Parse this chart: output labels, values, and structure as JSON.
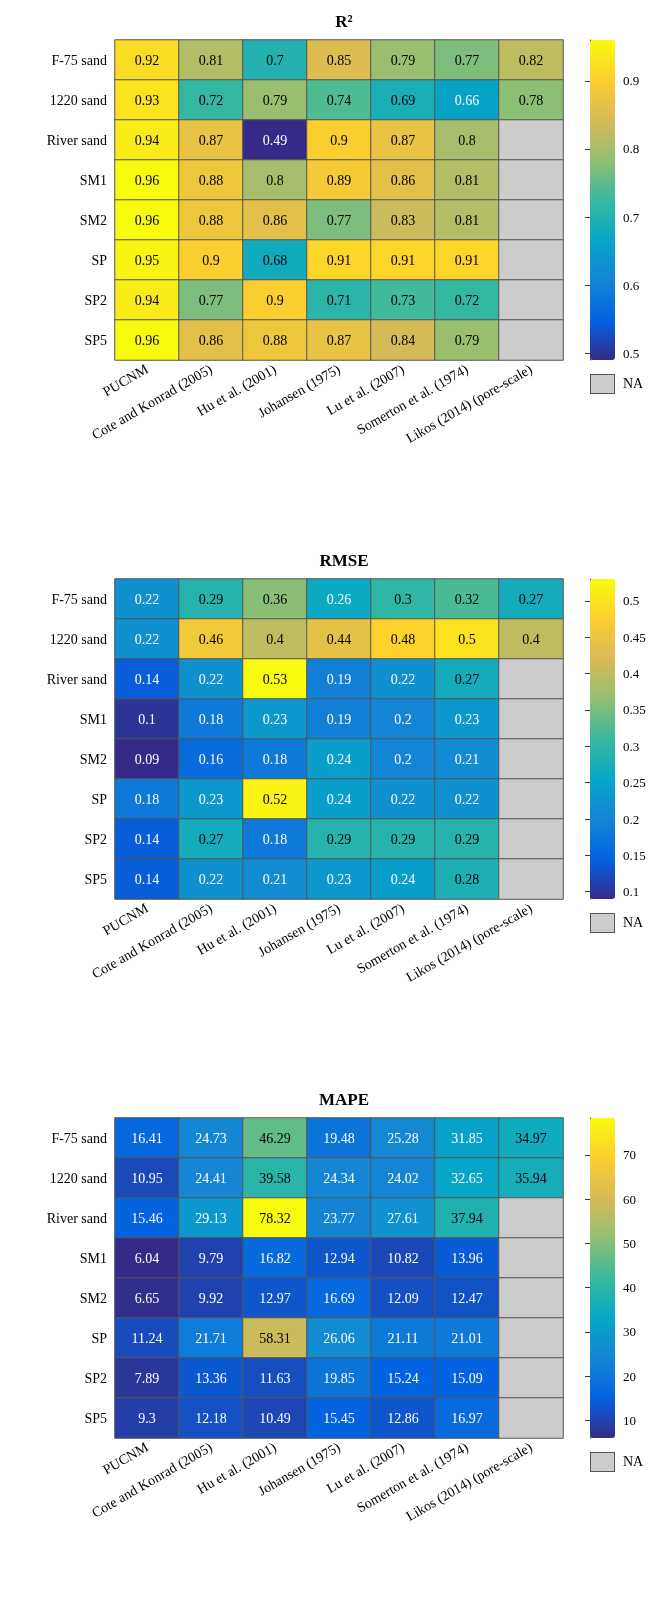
{
  "chart_data": [
    {
      "type": "heatmap",
      "title": "R²",
      "categories": [
        "PUCNM",
        "Cote and Konrad (2005)",
        "Hu et al. (2001)",
        "Johansen (1975)",
        "Lu et al. (2007)",
        "Somerton et al. (1974)",
        "Likos (2014) (pore-scale)"
      ],
      "y_categories": [
        "F-75 sand",
        "1220 sand",
        "River sand",
        "SM1",
        "SM2",
        "SP",
        "SP2",
        "SP5"
      ],
      "cells": [
        [
          0.92,
          0.81,
          0.7,
          0.85,
          0.79,
          0.77,
          0.82
        ],
        [
          0.93,
          0.72,
          0.79,
          0.74,
          0.69,
          0.66,
          0.78
        ],
        [
          0.94,
          0.87,
          0.49,
          0.9,
          0.87,
          0.8,
          null
        ],
        [
          0.96,
          0.88,
          0.8,
          0.89,
          0.86,
          0.81,
          null
        ],
        [
          0.96,
          0.88,
          0.86,
          0.77,
          0.83,
          0.81,
          null
        ],
        [
          0.95,
          0.9,
          0.68,
          0.91,
          0.91,
          0.91,
          null
        ],
        [
          0.94,
          0.77,
          0.9,
          0.71,
          0.73,
          0.72,
          null
        ],
        [
          0.96,
          0.86,
          0.88,
          0.87,
          0.84,
          0.79,
          null
        ]
      ],
      "clim": [
        0.49,
        0.96
      ],
      "cticks": [
        0.5,
        0.6,
        0.7,
        0.8,
        0.9
      ],
      "data_labels": true,
      "annotations": [
        "NA"
      ]
    },
    {
      "type": "heatmap",
      "title": "RMSE",
      "categories": [
        "PUCNM",
        "Cote and Konrad (2005)",
        "Hu et al. (2001)",
        "Johansen (1975)",
        "Lu et al. (2007)",
        "Somerton et al. (1974)",
        "Likos (2014) (pore-scale)"
      ],
      "y_categories": [
        "F-75 sand",
        "1220 sand",
        "River sand",
        "SM1",
        "SM2",
        "SP",
        "SP2",
        "SP5"
      ],
      "cells": [
        [
          0.22,
          0.29,
          0.36,
          0.26,
          0.3,
          0.32,
          0.27
        ],
        [
          0.22,
          0.46,
          0.4,
          0.44,
          0.48,
          0.5,
          0.4
        ],
        [
          0.14,
          0.22,
          0.53,
          0.19,
          0.22,
          0.27,
          null
        ],
        [
          0.1,
          0.18,
          0.23,
          0.19,
          0.2,
          0.23,
          null
        ],
        [
          0.09,
          0.16,
          0.18,
          0.24,
          0.2,
          0.21,
          null
        ],
        [
          0.18,
          0.23,
          0.52,
          0.24,
          0.22,
          0.22,
          null
        ],
        [
          0.14,
          0.27,
          0.18,
          0.29,
          0.29,
          0.29,
          null
        ],
        [
          0.14,
          0.22,
          0.21,
          0.23,
          0.24,
          0.28,
          null
        ]
      ],
      "clim": [
        0.09,
        0.53
      ],
      "cticks": [
        0.1,
        0.15,
        0.2,
        0.25,
        0.3,
        0.35,
        0.4,
        0.45,
        0.5
      ],
      "data_labels": true,
      "annotations": [
        "NA"
      ]
    },
    {
      "type": "heatmap",
      "title": "MAPE",
      "categories": [
        "PUCNM",
        "Cote and Konrad (2005)",
        "Hu et al. (2001)",
        "Johansen (1975)",
        "Lu et al. (2007)",
        "Somerton et al. (1974)",
        "Likos (2014) (pore-scale)"
      ],
      "y_categories": [
        "F-75 sand",
        "1220 sand",
        "River sand",
        "SM1",
        "SM2",
        "SP",
        "SP2",
        "SP5"
      ],
      "cells": [
        [
          16.41,
          24.73,
          46.29,
          19.48,
          25.28,
          31.85,
          34.97
        ],
        [
          10.95,
          24.41,
          39.58,
          24.34,
          24.02,
          32.65,
          35.94
        ],
        [
          15.46,
          29.13,
          78.32,
          23.77,
          27.61,
          37.94,
          null
        ],
        [
          6.04,
          9.79,
          16.82,
          12.94,
          10.82,
          13.96,
          null
        ],
        [
          6.65,
          9.92,
          12.97,
          16.69,
          12.09,
          12.47,
          null
        ],
        [
          11.24,
          21.71,
          58.31,
          26.06,
          21.11,
          21.01,
          null
        ],
        [
          7.89,
          13.36,
          11.63,
          19.85,
          15.24,
          15.09,
          null
        ],
        [
          9.3,
          12.18,
          10.49,
          15.45,
          12.86,
          16.97,
          null
        ]
      ],
      "clim": [
        6.04,
        78.32
      ],
      "cticks": [
        10,
        20,
        30,
        40,
        50,
        60,
        70
      ],
      "data_labels": true,
      "annotations": [
        "NA"
      ]
    }
  ]
}
